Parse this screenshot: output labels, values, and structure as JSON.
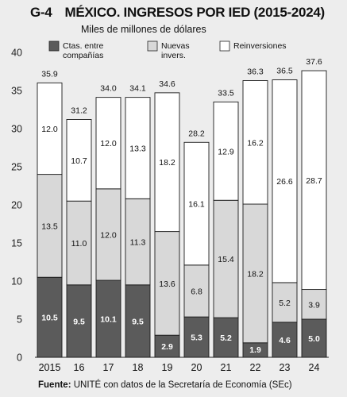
{
  "header": {
    "code": "G-4",
    "title": "MÉXICO. INGRESOS POR IED (2015-2024)",
    "subtitle": "Miles de millones de dólares"
  },
  "footer": {
    "source_label": "Fuente:",
    "source_text": " UNITÉ con datos de la Secretaría de Economía (SEc)"
  },
  "colors": {
    "ctas": "#5b5b5b",
    "nuevas": "#d8d8d8",
    "reinv": "#ffffff",
    "background": "#ededed"
  },
  "chart_data": {
    "type": "bar",
    "stacked": true,
    "categories": [
      "2015",
      "16",
      "17",
      "18",
      "19",
      "20",
      "21",
      "22",
      "23",
      "24"
    ],
    "series": [
      {
        "name": "Ctas. entre compañías",
        "values": [
          10.5,
          9.5,
          10.1,
          9.5,
          2.9,
          5.3,
          5.2,
          1.9,
          4.6,
          5.0
        ],
        "color": "#5b5b5b"
      },
      {
        "name": "Nuevas invers.",
        "values": [
          13.5,
          11.0,
          12.0,
          11.3,
          13.6,
          6.8,
          15.4,
          18.2,
          5.2,
          3.9
        ],
        "color": "#d8d8d8"
      },
      {
        "name": "Reinversiones",
        "values": [
          12.0,
          10.7,
          12.0,
          13.3,
          18.2,
          16.1,
          12.9,
          16.2,
          26.6,
          28.7
        ],
        "color": "#ffffff"
      }
    ],
    "totals": [
      35.9,
      31.2,
      34.0,
      34.1,
      34.6,
      28.2,
      33.5,
      36.3,
      36.5,
      37.6
    ],
    "label_display": [
      [
        "10.5",
        "13.5",
        "12.0"
      ],
      [
        "9.5",
        "11.0",
        "10.7"
      ],
      [
        "10.1",
        "12.0",
        "12.0"
      ],
      [
        "9.5",
        "11.3",
        "13.3"
      ],
      [
        "2.9",
        "13.6",
        "18.2"
      ],
      [
        "5.3",
        "6.8",
        "16.1"
      ],
      [
        "5.2",
        "15.4",
        "12.9"
      ],
      [
        "1.9",
        "18.2",
        "16.2"
      ],
      [
        "4.6",
        "5.2",
        "26.6"
      ],
      [
        "5.0",
        "3.9",
        "28.7"
      ]
    ],
    "y_ticks": [
      "0",
      "5",
      "10",
      "15",
      "20",
      "25",
      "30",
      "35",
      "40"
    ],
    "ylim": [
      0,
      40
    ],
    "legend_position": "top",
    "legend": [
      {
        "line1": "Ctas. entre",
        "line2": "compañías"
      },
      {
        "line1": "Nuevas",
        "line2": "invers."
      },
      {
        "line1": "Reinversiones",
        "line2": ""
      }
    ]
  }
}
